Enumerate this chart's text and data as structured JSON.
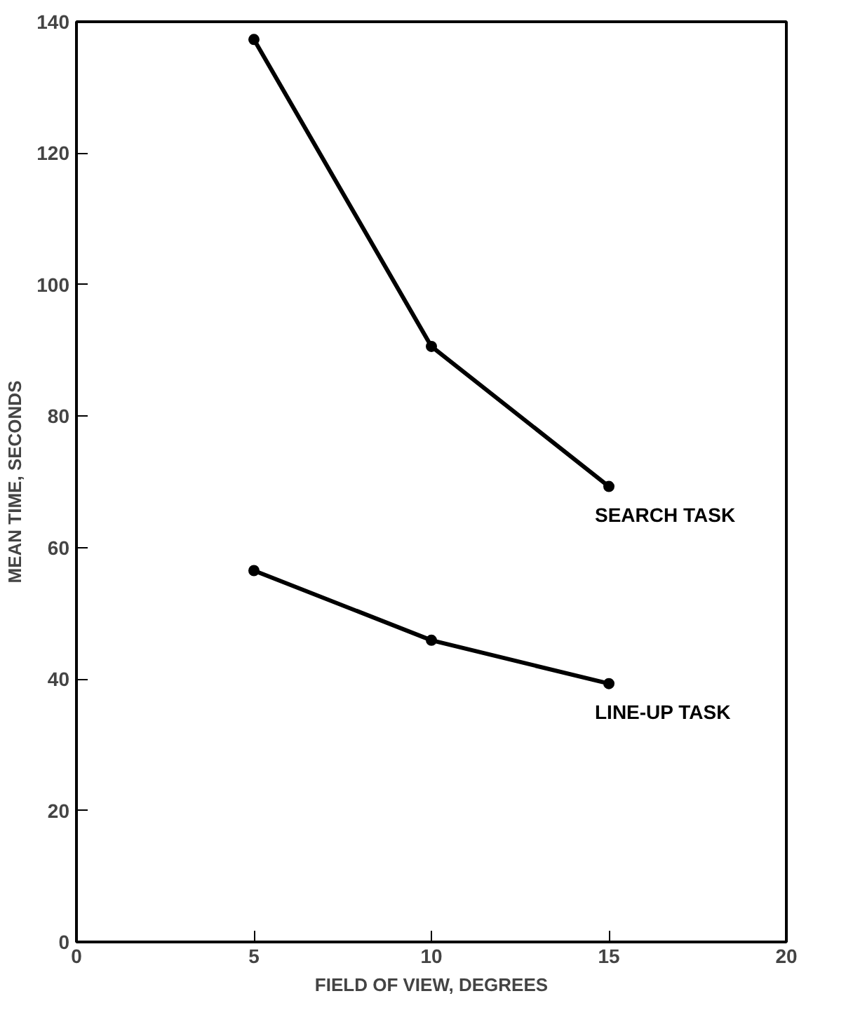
{
  "chart_data": {
    "type": "line",
    "xlabel": "FIELD OF VIEW, DEGREES",
    "ylabel": "MEAN TIME, SECONDS",
    "x": [
      5,
      10,
      15
    ],
    "series": [
      {
        "name": "SEARCH TASK",
        "color": "#000000",
        "values": [
          137.3,
          90.6,
          69.3
        ]
      },
      {
        "name": "LINE-UP TASK",
        "color": "#000000",
        "values": [
          56.5,
          45.9,
          39.3
        ]
      }
    ],
    "xlim": [
      0,
      20
    ],
    "xticks": [
      0,
      5,
      10,
      15,
      20
    ],
    "ylim": [
      0,
      140
    ],
    "yticks": [
      0,
      20,
      40,
      60,
      80,
      100,
      120,
      140
    ],
    "grid": false,
    "marker": "circle",
    "line_style": "solid"
  }
}
